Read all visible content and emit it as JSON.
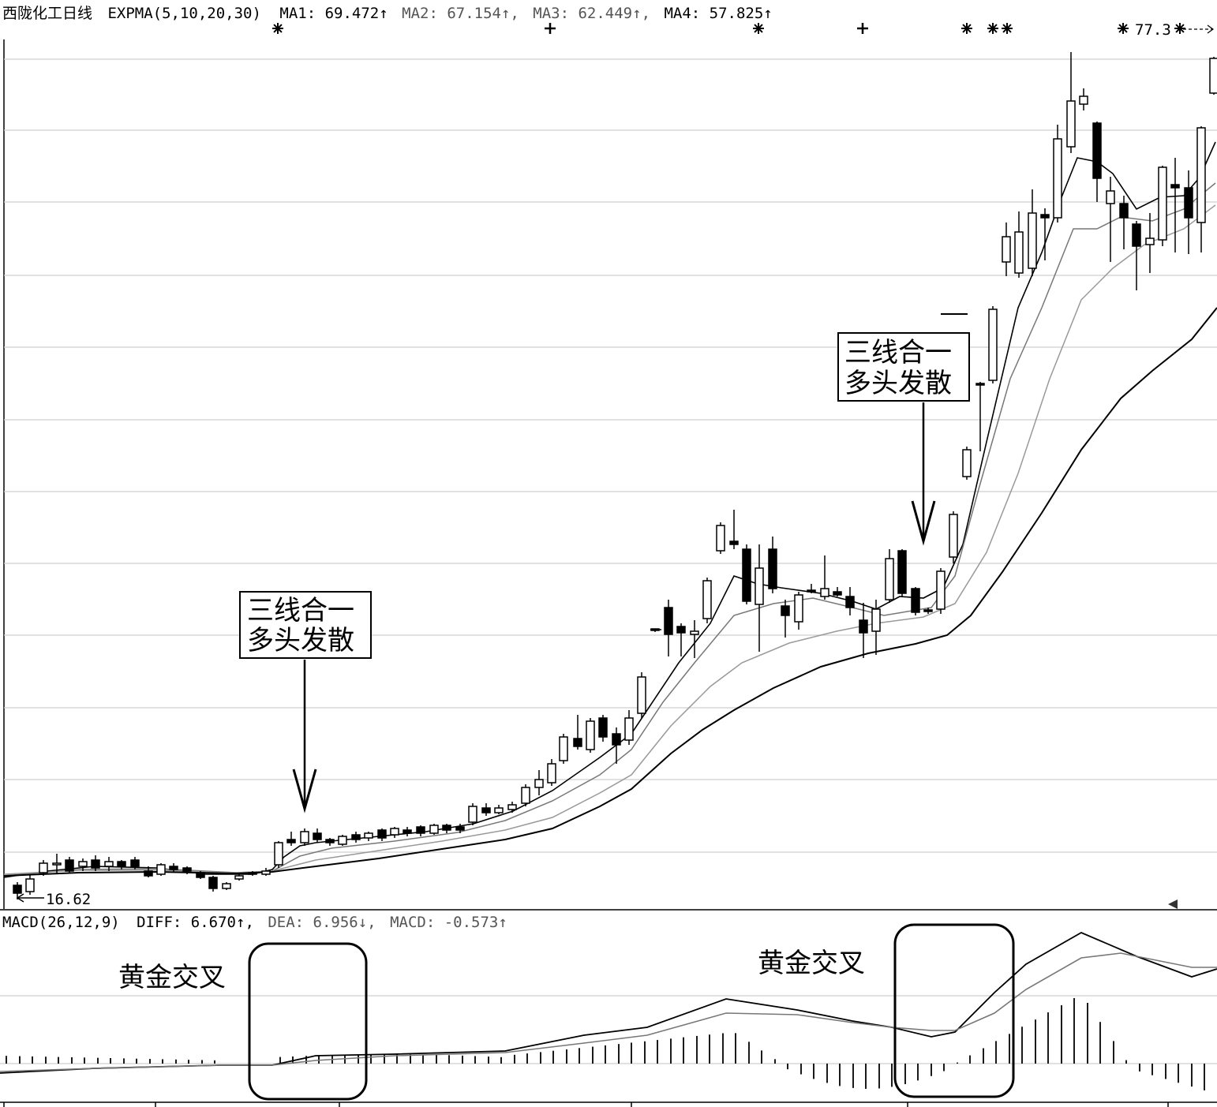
{
  "header": {
    "name": "西陇化工日线",
    "indicator": "EXPMA(5,10,20,30)",
    "ma1": "MA1: 69.472↑",
    "ma2": "MA2: 67.154↑,",
    "ma3": "MA3: 62.449↑,",
    "ma4": "MA4: 57.825↑"
  },
  "macd_header": {
    "indicator": "MACD(26,12,9)",
    "diff": "DIFF: 6.670↑,",
    "dea": "DEA: 6.956↓,",
    "macd": "MACD: -0.573↑"
  },
  "price_labels": {
    "low": "16.62",
    "high": "77.3"
  },
  "annotations": {
    "box1_line1": "三线合一",
    "box1_line2": "多头发散",
    "box2_line1": "三线合一",
    "box2_line2": "多头发散",
    "cross1": "黄金交叉",
    "cross2": "黄金交叉"
  },
  "chart_data": {
    "type": "candlestick",
    "series": [
      {
        "name": "EXPMA",
        "values": []
      },
      {
        "name": "MACD",
        "values": []
      }
    ]
  }
}
